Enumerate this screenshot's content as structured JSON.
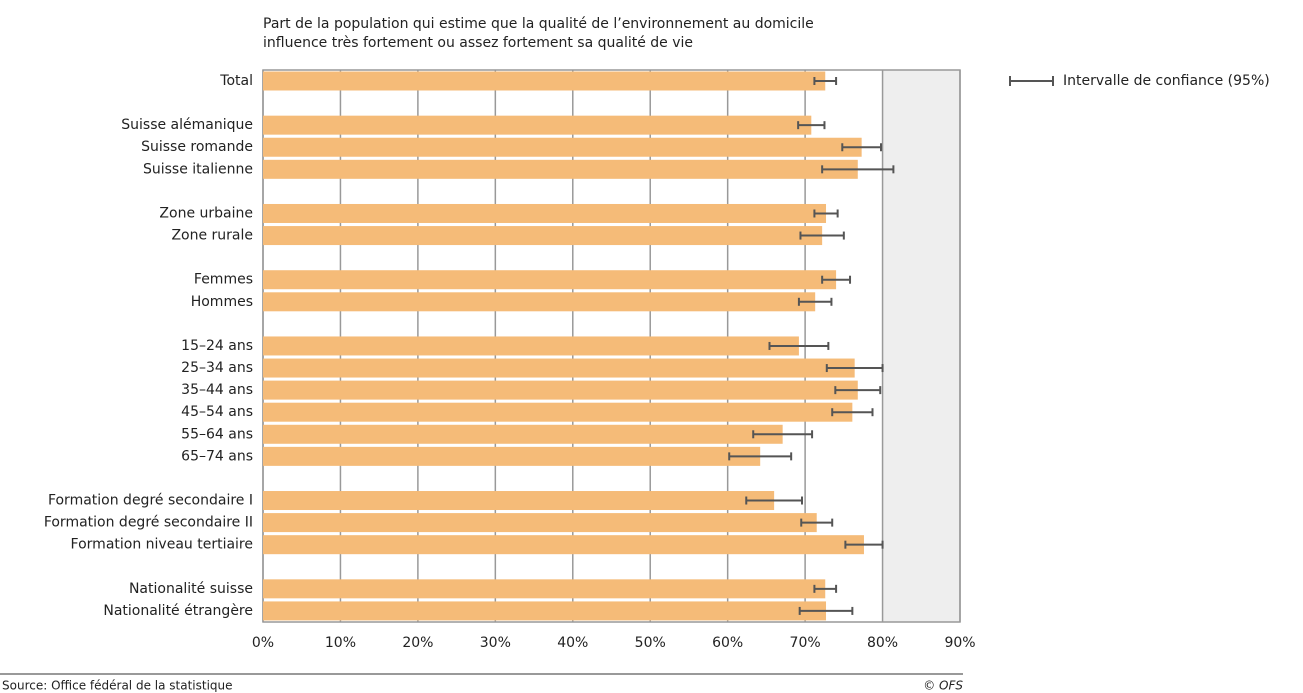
{
  "chart_data": {
    "type": "hbar",
    "title": [
      "Part de la population qui estime que la qualité de l’environnement au domicile",
      "influence très fortement ou assez fortement sa qualité de vie"
    ],
    "categories": [
      "Total",
      null,
      "Suisse alémanique",
      "Suisse romande",
      "Suisse italienne",
      null,
      "Zone urbaine",
      "Zone rurale",
      null,
      "Femmes",
      "Hommes",
      null,
      "15–24 ans",
      "25–34 ans",
      "35–44 ans",
      "45–54 ans",
      "55–64 ans",
      "65–74 ans",
      null,
      "Formation degré secondaire I",
      "Formation degré secondaire II",
      "Formation niveau tertiaire",
      null,
      "Nationalité suisse",
      "Nationalité étrangère"
    ],
    "values": [
      72.6,
      null,
      70.8,
      77.3,
      76.8,
      null,
      72.7,
      72.2,
      null,
      74.0,
      71.3,
      null,
      69.2,
      76.4,
      76.8,
      76.1,
      67.1,
      64.2,
      null,
      66.0,
      71.5,
      77.6,
      null,
      72.6,
      72.7
    ],
    "errors": [
      1.4,
      null,
      1.7,
      2.5,
      4.6,
      null,
      1.5,
      2.8,
      null,
      1.8,
      2.1,
      null,
      3.8,
      3.6,
      2.9,
      2.6,
      3.8,
      4.0,
      null,
      3.6,
      2.0,
      2.4,
      null,
      1.4,
      3.4
    ],
    "error_label": "Intervalle de confiance (95%)",
    "color": "#f5bb78",
    "error_color": "#555555",
    "xlim": [
      0,
      90
    ],
    "xticks": [
      {
        "value": 0,
        "label": "0%"
      },
      {
        "value": 10,
        "label": "10%"
      },
      {
        "value": 20,
        "label": "20%"
      },
      {
        "value": 30,
        "label": "30%"
      },
      {
        "value": 40,
        "label": "40%"
      },
      {
        "value": 50,
        "label": "50%"
      },
      {
        "value": 60,
        "label": "60%"
      },
      {
        "value": 70,
        "label": "70%"
      },
      {
        "value": 80,
        "label": "80%"
      },
      {
        "value": 90,
        "label": "90%"
      }
    ],
    "grid": true,
    "source": "Source: Office fédéral de la statistique",
    "copyright": "© OFS"
  }
}
